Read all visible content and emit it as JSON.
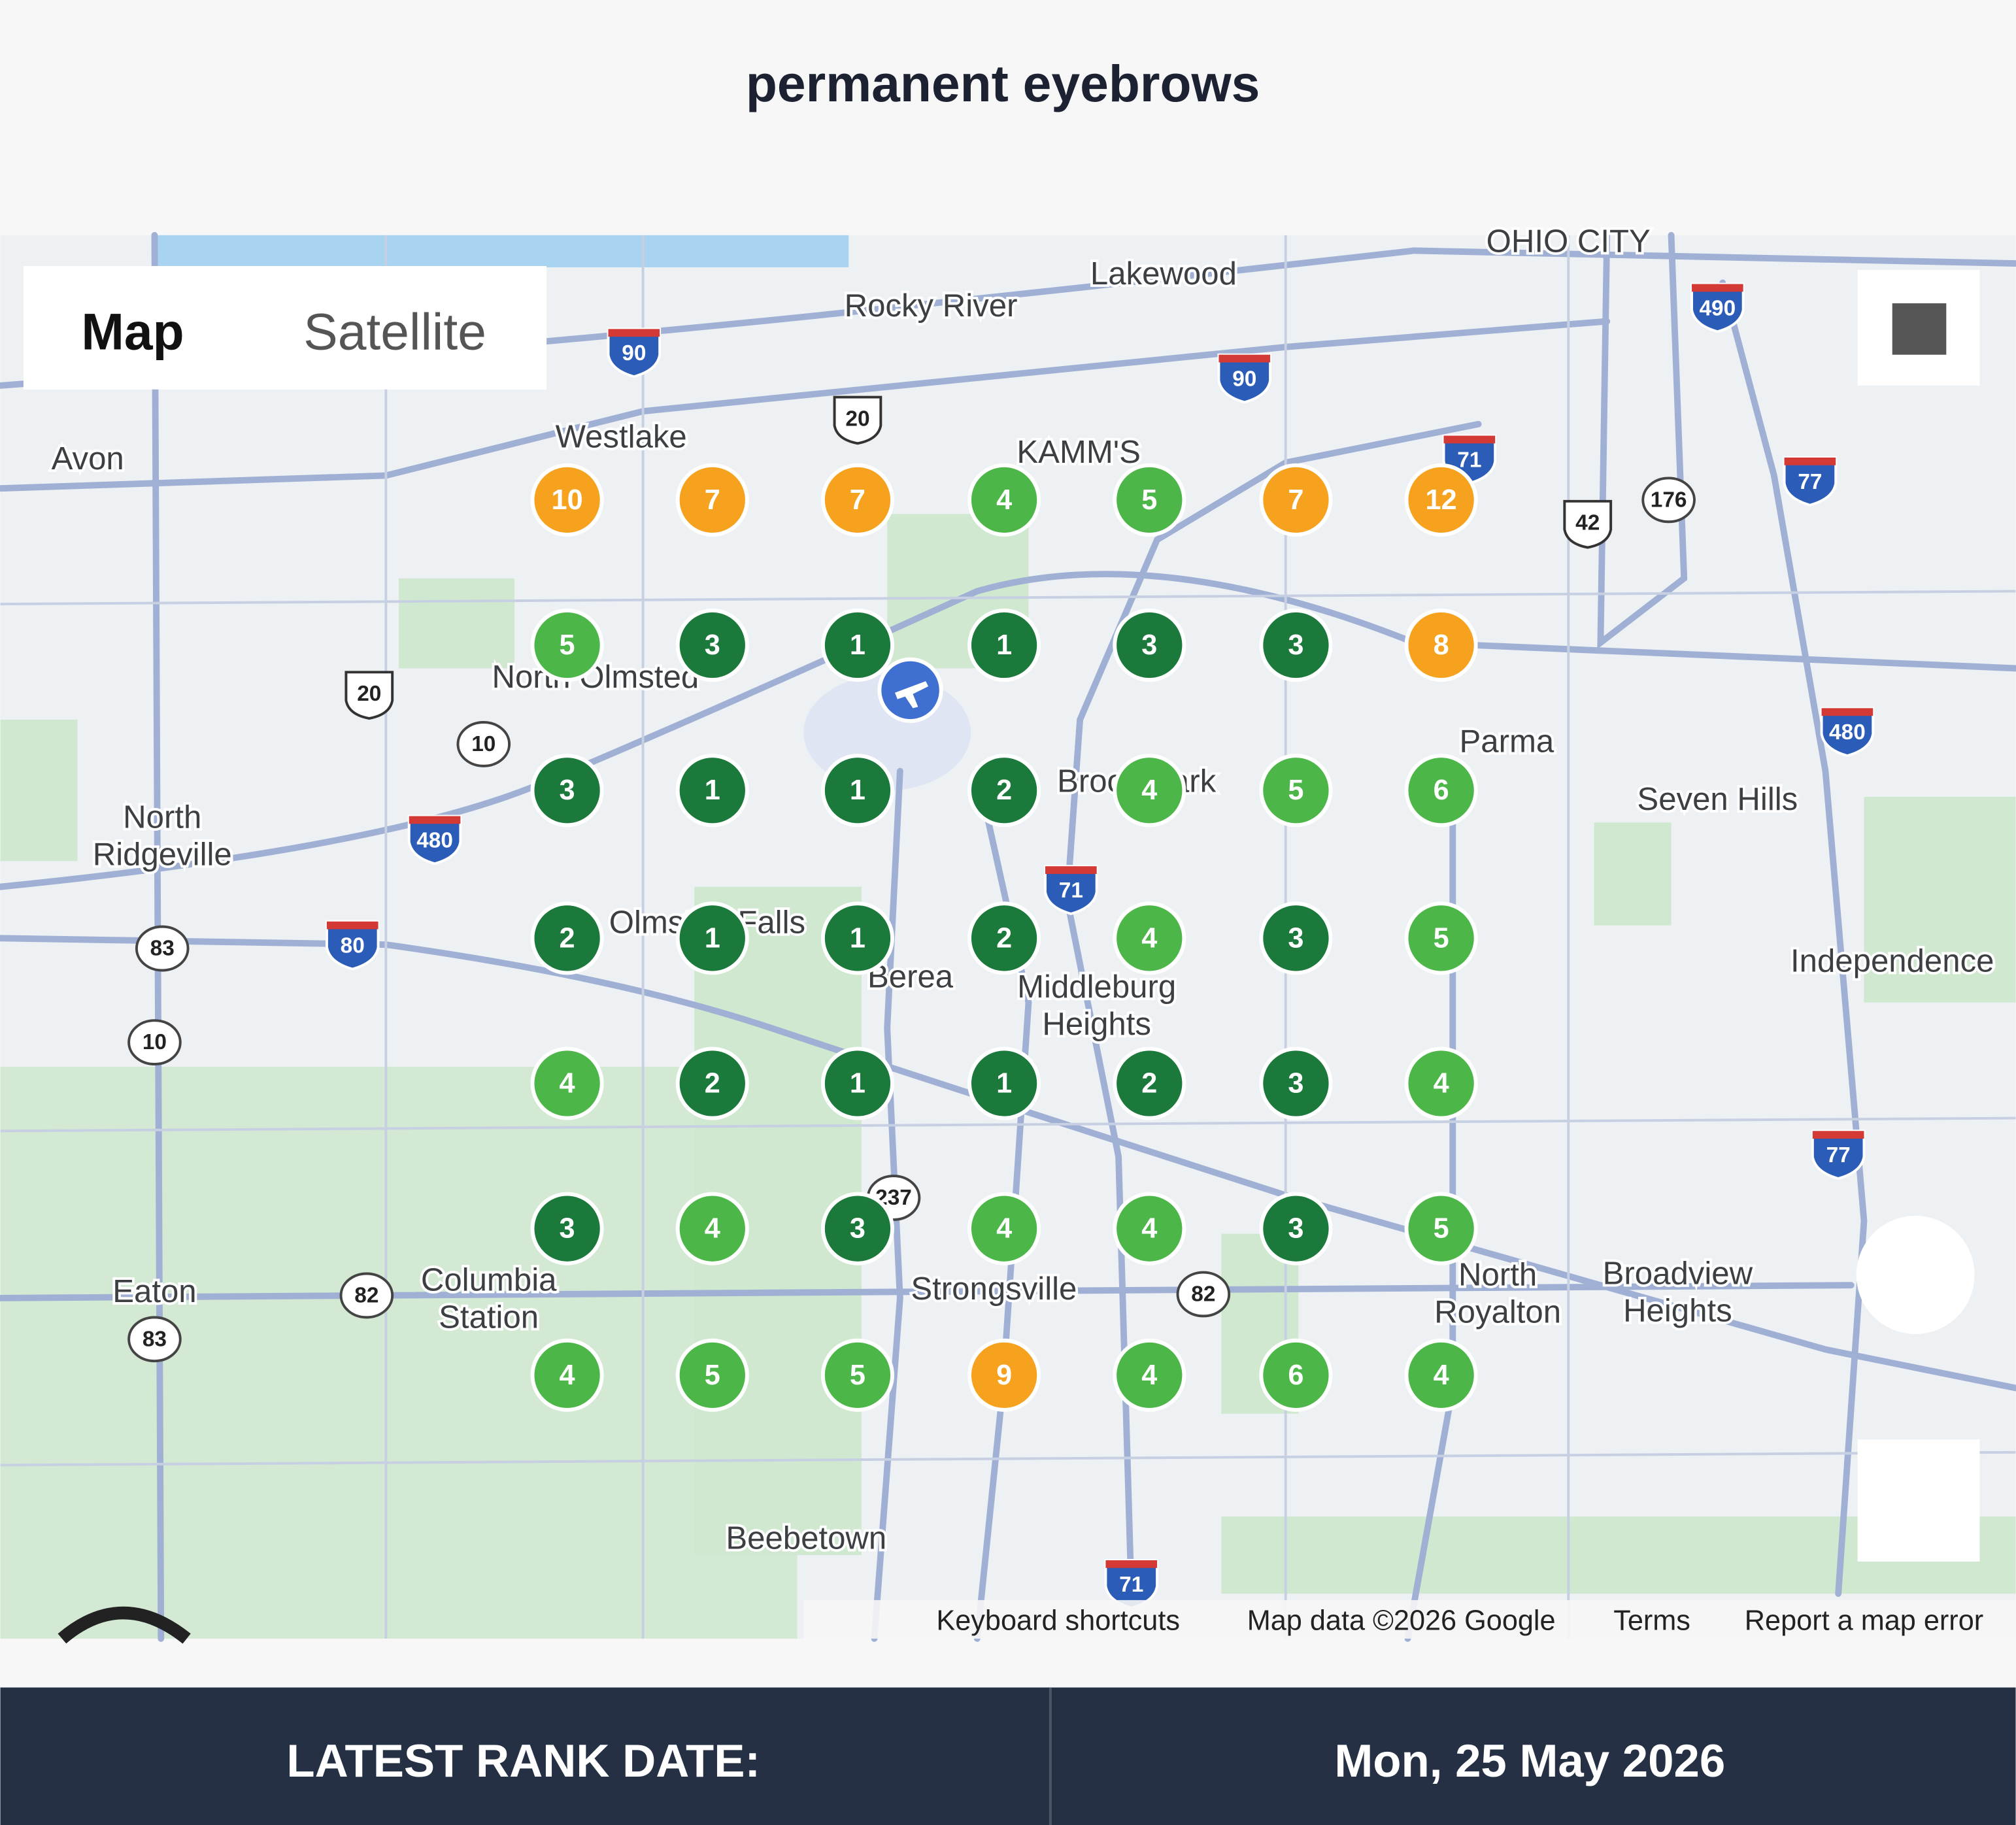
{
  "header": {
    "title": "permanent eyebrows"
  },
  "map": {
    "toggle": [
      "Map",
      "Satellite"
    ],
    "places": [
      "Lakewood",
      "Rocky River",
      "Westlake",
      "Avon",
      "KAMM'S",
      "OHIO CITY",
      "North Olmsted",
      "Parma",
      "Seven Hills",
      "Brook Park",
      "North",
      "Ridgeville",
      "Berea",
      "Middleburg",
      "Heights",
      "Independence",
      "Olmsted Falls",
      "Columbia",
      "Station",
      "Eaton",
      "Strongsville",
      "North",
      "Royalton",
      "Broadview",
      "Heights",
      "Beebetown"
    ],
    "shields": [
      "90",
      "90",
      "20",
      "490",
      "71",
      "77",
      "42",
      "176",
      "20",
      "10",
      "480",
      "480",
      "71",
      "80",
      "83",
      "10",
      "77",
      "82",
      "82",
      "83",
      "237",
      "71"
    ],
    "attribution": [
      "Keyboard shortcuts",
      "Map data ©2026 Google",
      "Terms",
      "Report a map error"
    ],
    "grid": {
      "ranks": [
        [
          10,
          7,
          7,
          4,
          5,
          7,
          12
        ],
        [
          5,
          3,
          1,
          1,
          3,
          3,
          8
        ],
        [
          3,
          1,
          1,
          2,
          4,
          5,
          6
        ],
        [
          2,
          1,
          1,
          2,
          4,
          3,
          5
        ],
        [
          4,
          2,
          1,
          1,
          2,
          3,
          4
        ],
        [
          3,
          4,
          3,
          4,
          4,
          3,
          5
        ],
        [
          4,
          5,
          5,
          9,
          4,
          6,
          4
        ]
      ],
      "colors": [
        [
          "#f6a21e",
          "#f6a21e",
          "#f6a21e",
          "#4cb748",
          "#4cb748",
          "#f6a21e",
          "#f6a21e"
        ],
        [
          "#4cb748",
          "#1b7a3b",
          "#1b7a3b",
          "#1b7a3b",
          "#1b7a3b",
          "#1b7a3b",
          "#f6a21e"
        ],
        [
          "#1b7a3b",
          "#1b7a3b",
          "#1b7a3b",
          "#1b7a3b",
          "#4cb748",
          "#4cb748",
          "#4cb748"
        ],
        [
          "#1b7a3b",
          "#1b7a3b",
          "#1b7a3b",
          "#1b7a3b",
          "#4cb748",
          "#1b7a3b",
          "#4cb748"
        ],
        [
          "#4cb748",
          "#1b7a3b",
          "#1b7a3b",
          "#1b7a3b",
          "#1b7a3b",
          "#1b7a3b",
          "#4cb748"
        ],
        [
          "#1b7a3b",
          "#4cb748",
          "#1b7a3b",
          "#4cb748",
          "#4cb748",
          "#1b7a3b",
          "#4cb748"
        ],
        [
          "#4cb748",
          "#4cb748",
          "#4cb748",
          "#f6a21e",
          "#4cb748",
          "#4cb748",
          "#4cb748"
        ]
      ]
    }
  },
  "footer": {
    "label": "LATEST RANK DATE:",
    "date": "Mon, 25 May 2026"
  }
}
